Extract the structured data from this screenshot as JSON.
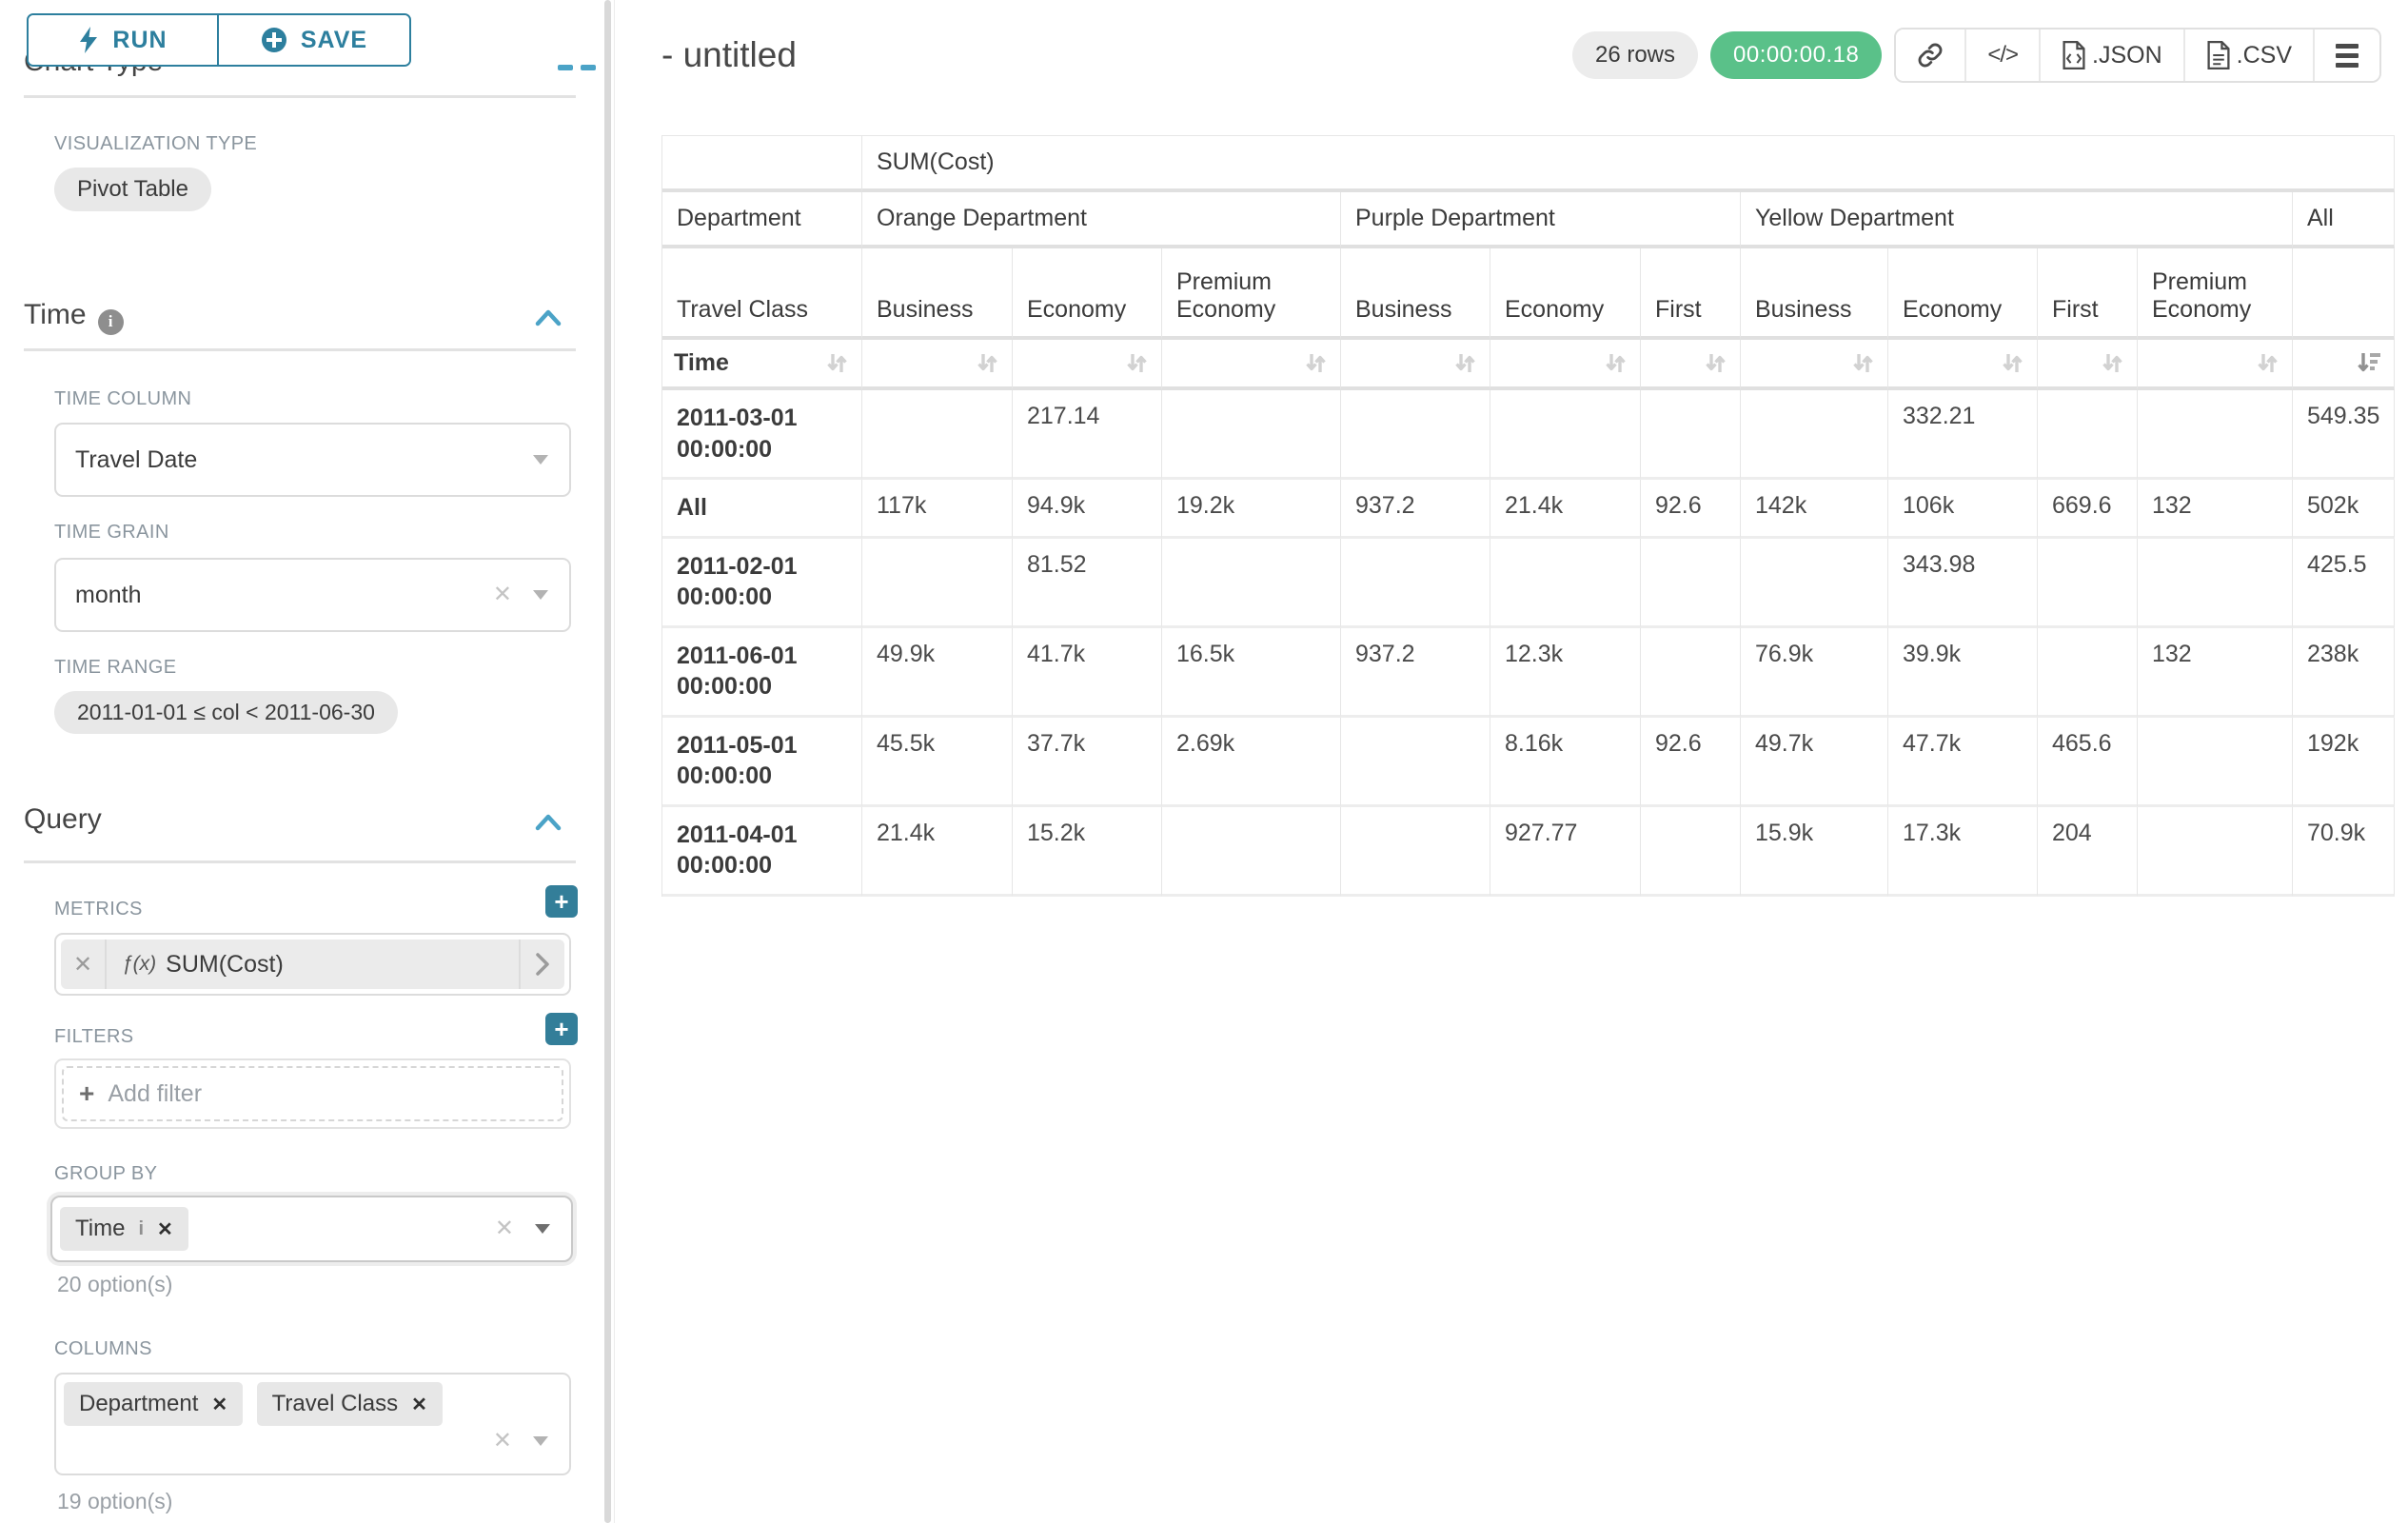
{
  "sidebar": {
    "run_label": "RUN",
    "save_label": "SAVE",
    "chart_type_heading": "Chart Type",
    "visualization_type": {
      "label": "VISUALIZATION TYPE",
      "value": "Pivot Table"
    },
    "time": {
      "heading": "Time",
      "time_column_label": "TIME COLUMN",
      "time_column_value": "Travel Date",
      "time_grain_label": "TIME GRAIN",
      "time_grain_value": "month",
      "time_range_label": "TIME RANGE",
      "time_range_value": "2011-01-01 ≤ col < 2011-06-30"
    },
    "query": {
      "heading": "Query",
      "metrics_label": "METRICS",
      "metric_fx": "ƒ(x)",
      "metric_value": "SUM(Cost)",
      "filters_label": "FILTERS",
      "add_filter_label": "Add filter",
      "group_by_label": "GROUP BY",
      "group_by_value": "Time",
      "group_by_options": "20 option(s)",
      "columns_label": "COLUMNS",
      "columns_values": [
        "Department",
        "Travel Class"
      ],
      "columns_options": "19 option(s)"
    }
  },
  "header": {
    "title": "- untitled",
    "rows_badge": "26 rows",
    "duration": "00:00:00.18",
    "json_label": ".JSON",
    "csv_label": ".CSV"
  },
  "colors": {
    "primary_teal": "#2d7f9e",
    "chevron_blue": "#4ba3c7",
    "success_green": "#5ac189"
  },
  "chart_data": {
    "type": "table",
    "metric_header": "SUM(Cost)",
    "department_label": "Department",
    "travel_class_label": "Travel Class",
    "time_label": "Time",
    "groups": [
      {
        "label": "Orange Department",
        "cols": [
          "Business",
          "Economy",
          "Premium Economy"
        ]
      },
      {
        "label": "Purple Department",
        "cols": [
          "Business",
          "Economy",
          "First"
        ]
      },
      {
        "label": "Yellow Department",
        "cols": [
          "Business",
          "Economy",
          "First",
          "Premium Economy"
        ]
      },
      {
        "label": "All",
        "cols": [
          ""
        ]
      }
    ],
    "rows": [
      {
        "time": "2011-03-01 00:00:00",
        "values": [
          "",
          "217.14",
          "",
          "",
          "",
          "",
          "",
          "332.21",
          "",
          "",
          "549.35"
        ]
      },
      {
        "time": "All",
        "values": [
          "117k",
          "94.9k",
          "19.2k",
          "937.2",
          "21.4k",
          "92.6",
          "142k",
          "106k",
          "669.6",
          "132",
          "502k"
        ]
      },
      {
        "time": "2011-02-01 00:00:00",
        "values": [
          "",
          "81.52",
          "",
          "",
          "",
          "",
          "",
          "343.98",
          "",
          "",
          "425.5"
        ]
      },
      {
        "time": "2011-06-01 00:00:00",
        "values": [
          "49.9k",
          "41.7k",
          "16.5k",
          "937.2",
          "12.3k",
          "",
          "76.9k",
          "39.9k",
          "",
          "132",
          "238k"
        ]
      },
      {
        "time": "2011-05-01 00:00:00",
        "values": [
          "45.5k",
          "37.7k",
          "2.69k",
          "",
          "8.16k",
          "92.6",
          "49.7k",
          "47.7k",
          "465.6",
          "",
          "192k"
        ]
      },
      {
        "time": "2011-04-01 00:00:00",
        "values": [
          "21.4k",
          "15.2k",
          "",
          "",
          "927.77",
          "",
          "15.9k",
          "17.3k",
          "204",
          "",
          "70.9k"
        ]
      }
    ],
    "sort": {
      "column": "All",
      "direction": "desc"
    }
  }
}
